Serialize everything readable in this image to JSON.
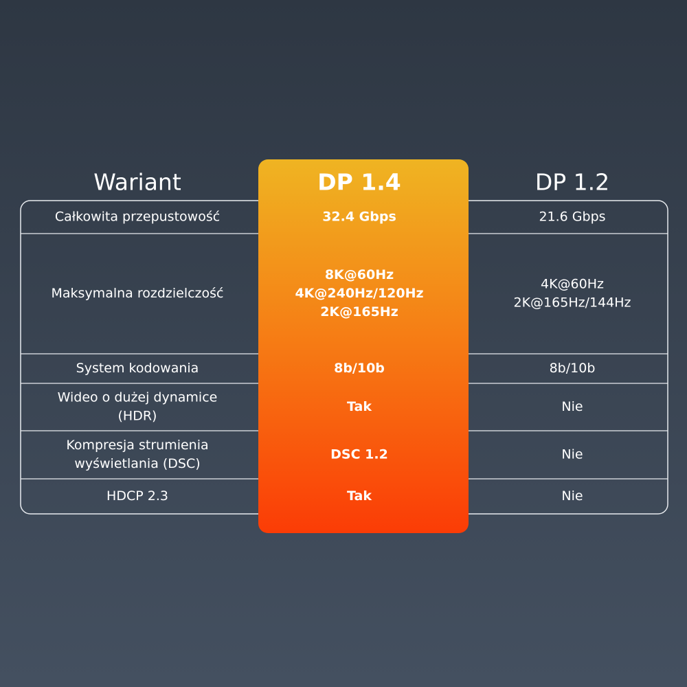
{
  "table": {
    "header": [
      "Wariant",
      "DP 1.4",
      "DP 1.2"
    ],
    "rows": [
      [
        [
          "Całkowita przepustowość"
        ],
        [
          "32.4 Gbps"
        ],
        [
          "21.6 Gbps"
        ]
      ],
      [
        [
          "Maksymalna rozdzielczość"
        ],
        [
          "8K@60Hz",
          "4K@240Hz/120Hz",
          "2K@165Hz"
        ],
        [
          "4K@60Hz",
          "2K@165Hz/144Hz"
        ]
      ],
      [
        [
          "System kodowania"
        ],
        [
          "8b/10b"
        ],
        [
          "8b/10b"
        ]
      ],
      [
        [
          "Wideo o dużej dynamice",
          "(HDR)"
        ],
        [
          "Tak"
        ],
        [
          "Nie"
        ]
      ],
      [
        [
          "Kompresja strumienia",
          "wyświetlania (DSC)"
        ],
        [
          "DSC 1.2"
        ],
        [
          "Nie"
        ]
      ],
      [
        [
          "HDCP 2.3"
        ],
        [
          "Tak"
        ],
        [
          "Nie"
        ]
      ]
    ]
  }
}
